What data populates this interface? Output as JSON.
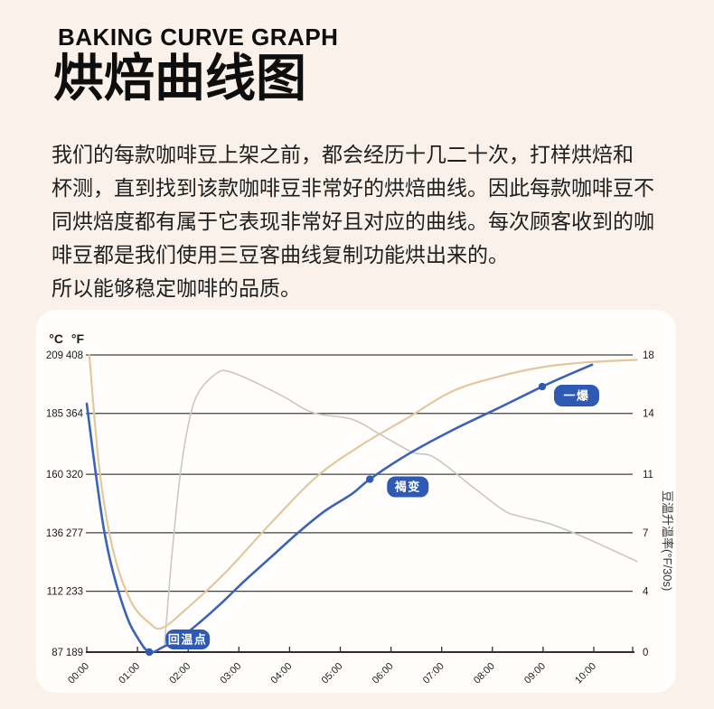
{
  "header": {
    "en_title": "BAKING CURVE GRAPH",
    "cn_title": "烘焙曲线图"
  },
  "intro_lines": [
    "我们的每款咖啡豆上架之前，都会经历十几二十次，打样烘焙和",
    "杯测，直到找到该款咖啡豆非常好的烘焙曲线。因此每款咖啡豆不",
    "同烘焙度都有属于它表现非常好且对应的曲线。每次顾客收到的咖",
    "啡豆都是我们使用三豆客曲线复制功能烘出来的。",
    "所以能够稳定咖啡的品质。"
  ],
  "colors": {
    "page_bg": "#f9f1ea",
    "card_bg": "#fffefd",
    "heading_text": "#0e0e0e",
    "body_text": "#1e1e1e",
    "grid": "#414141",
    "axis": "#2f2f2f",
    "tick_text": "#1b1b1b",
    "bean_curve": "#3a63b8",
    "env_curve": "#e3c79d",
    "ror_curve": "#c8c8c8",
    "badge": "#2e5ab4",
    "badge_text": "#ffffff"
  },
  "chart_data": {
    "type": "line",
    "title": "烘焙曲线图 (coffee roast curves)",
    "x_axis": {
      "unit": "time (min:sec)",
      "ticks": [
        "00:00",
        "01:00",
        "02:00",
        "03:00",
        "04:00",
        "05:00",
        "06:00",
        "07:00",
        "08:00",
        "09:00",
        "10:00"
      ]
    },
    "y_axis_left": {
      "headers": [
        "°C",
        "°F"
      ],
      "unit": "temperature"
    },
    "y_axis_right": {
      "title": "豆温升温率(°F/30s)",
      "ticks": [
        18,
        14,
        11,
        7,
        4,
        0
      ]
    },
    "grid_rows": [
      {
        "c": 209,
        "f": 408,
        "ror": 18
      },
      {
        "c": 185,
        "f": 364,
        "ror": 14
      },
      {
        "c": 160,
        "f": 320,
        "ror": 11
      },
      {
        "c": 136,
        "f": 277,
        "ror": 7
      },
      {
        "c": 112,
        "f": 233,
        "ror": 4
      },
      {
        "c": 87,
        "f": 189,
        "ror": 0
      }
    ],
    "ylim_left_c": [
      87,
      209
    ],
    "ylim_right_ror": [
      0,
      18
    ],
    "grid": true,
    "legend": "none",
    "series": [
      {
        "name": "bean-temperature",
        "color_key": "bean_curve",
        "unit": "c",
        "width": 2.6,
        "points": [
          [
            "00:00",
            189
          ],
          [
            "00:10",
            162
          ],
          [
            "00:20",
            138
          ],
          [
            "00:31",
            120
          ],
          [
            "00:47",
            102
          ],
          [
            "01:00",
            93
          ],
          [
            "01:14",
            87
          ],
          [
            "01:30",
            89
          ],
          [
            "01:51",
            93
          ],
          [
            "02:13",
            99
          ],
          [
            "02:39",
            107
          ],
          [
            "03:06",
            116
          ],
          [
            "03:38",
            126
          ],
          [
            "04:10",
            136
          ],
          [
            "04:42",
            145
          ],
          [
            "05:14",
            152
          ],
          [
            "05:35",
            158
          ],
          [
            "06:19",
            168
          ],
          [
            "07:12",
            178
          ],
          [
            "08:06",
            187
          ],
          [
            "08:59",
            196
          ],
          [
            "09:31",
            201
          ],
          [
            "09:58",
            205
          ]
        ]
      },
      {
        "name": "environment-temperature",
        "color_key": "env_curve",
        "unit": "c",
        "width": 2.2,
        "points": [
          [
            "00:03",
            209
          ],
          [
            "00:15",
            162
          ],
          [
            "00:31",
            129
          ],
          [
            "00:52",
            108
          ],
          [
            "01:14",
            99
          ],
          [
            "01:30",
            97
          ],
          [
            "02:02",
            106
          ],
          [
            "02:45",
            120
          ],
          [
            "03:38",
            140
          ],
          [
            "04:32",
            159
          ],
          [
            "05:25",
            172
          ],
          [
            "06:19",
            183
          ],
          [
            "07:12",
            194
          ],
          [
            "08:06",
            200
          ],
          [
            "08:59",
            204
          ],
          [
            "09:52",
            206
          ],
          [
            "10:51",
            207
          ]
        ]
      },
      {
        "name": "rate-of-rise",
        "color_key": "ror_curve",
        "unit": "ror",
        "width": 1.6,
        "points": [
          [
            "01:32",
            0.4
          ],
          [
            "01:41",
            6.0
          ],
          [
            "01:51",
            10.9
          ],
          [
            "02:02",
            14.2
          ],
          [
            "02:13",
            15.8
          ],
          [
            "02:34",
            16.9
          ],
          [
            "02:48",
            17.0
          ],
          [
            "03:17",
            16.4
          ],
          [
            "03:52",
            15.5
          ],
          [
            "04:28",
            14.5
          ],
          [
            "05:14",
            14.1
          ],
          [
            "05:50",
            13.1
          ],
          [
            "06:26",
            12.1
          ],
          [
            "06:51",
            11.8
          ],
          [
            "07:37",
            10.0
          ],
          [
            "08:13",
            8.6
          ],
          [
            "08:34",
            8.2
          ],
          [
            "09:06",
            7.8
          ],
          [
            "09:42",
            7.1
          ],
          [
            "10:17",
            6.3
          ],
          [
            "10:51",
            5.5
          ]
        ]
      }
    ],
    "annotations": [
      {
        "key": "turning-point",
        "label": "回温点",
        "time": "01:14",
        "temp_c": 87
      },
      {
        "key": "browning",
        "label": "褐变",
        "time": "05:35",
        "temp_c": 158
      },
      {
        "key": "first-crack",
        "label": "一爆",
        "time": "08:59",
        "temp_c": 196
      }
    ]
  }
}
